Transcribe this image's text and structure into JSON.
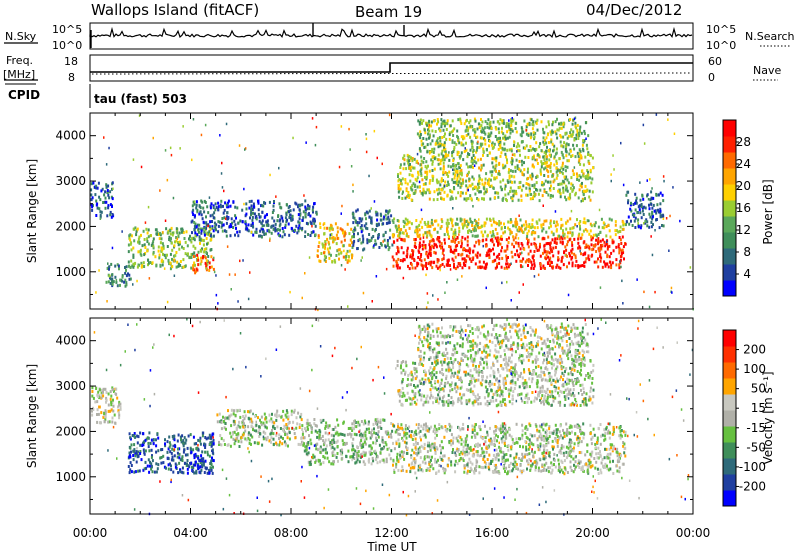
{
  "header": {
    "station": "Wallops Island (fitACF)",
    "beam": "Beam 19",
    "date": "04/Dec/2012"
  },
  "params": {
    "nsky_label": "N.Sky",
    "nsky_ticks": [
      "10^5",
      "10^0"
    ],
    "nsearch_label": "N.Search",
    "nsearch_ticks": [
      "10^5",
      "10^0"
    ],
    "freq_label": "Freq.",
    "freq_unit": "[MHz]",
    "freq_ticks": [
      "18",
      "8"
    ],
    "nave_label": "Nave",
    "nave_ticks": [
      "60",
      "0"
    ],
    "cpid_label": "CPID",
    "cpid_value": "tau (fast) 503"
  },
  "colors": {
    "power": [
      "#0000ff",
      "#1f3fa0",
      "#2e6a7a",
      "#3f8e5a",
      "#5aa85a",
      "#9acd32",
      "#ffd000",
      "#ffa500",
      "#ff6a00",
      "#ff2000",
      "#ff0000"
    ],
    "velocity": [
      "#0000ff",
      "#1f3fa0",
      "#2e6a7a",
      "#3f8e5a",
      "#66c040",
      "#b0b0a8",
      "#c8c8c0",
      "#ffa500",
      "#ff6a00",
      "#ff3000",
      "#ff0000"
    ],
    "ground_scatter": "#b8b8b0"
  },
  "chart_data": [
    {
      "type": "heatmap",
      "name": "power-panel",
      "ylabel": "Slant Range [km]",
      "xlim_hours": [
        0,
        24
      ],
      "ylim_km": [
        180,
        4500
      ],
      "yticks": [
        "1000",
        "2000",
        "3000",
        "4000"
      ],
      "colorbar": {
        "label": "Power [dB]",
        "range": [
          0,
          32
        ],
        "ticks": [
          "4",
          "8",
          "12",
          "16",
          "20",
          "24",
          "28"
        ]
      },
      "regions": [
        {
          "t0": 0.0,
          "t1": 0.9,
          "r0": 2200,
          "r1": 3000,
          "level": 0.18
        },
        {
          "t0": 0.6,
          "t1": 1.6,
          "r0": 700,
          "r1": 1200,
          "level": 0.3
        },
        {
          "t0": 1.5,
          "t1": 4.8,
          "r0": 1100,
          "r1": 2000,
          "level": 0.45
        },
        {
          "t0": 4.0,
          "t1": 4.9,
          "r0": 1000,
          "r1": 1400,
          "level": 0.8
        },
        {
          "t0": 4.0,
          "t1": 9.0,
          "r0": 1800,
          "r1": 2600,
          "level": 0.2
        },
        {
          "t0": 9.0,
          "t1": 10.4,
          "r0": 1200,
          "r1": 2100,
          "level": 0.6
        },
        {
          "t0": 10.4,
          "t1": 12.0,
          "r0": 1500,
          "r1": 2400,
          "level": 0.25
        },
        {
          "t0": 12.0,
          "t1": 21.3,
          "r0": 1100,
          "r1": 1800,
          "level": 0.9
        },
        {
          "t0": 12.0,
          "t1": 21.3,
          "r0": 1800,
          "r1": 2200,
          "level": 0.55
        },
        {
          "t0": 12.2,
          "t1": 20.0,
          "r0": 2600,
          "r1": 3600,
          "level": 0.5
        },
        {
          "t0": 13.0,
          "t1": 19.8,
          "r0": 3600,
          "r1": 4400,
          "level": 0.45
        },
        {
          "t0": 21.3,
          "t1": 22.8,
          "r0": 2000,
          "r1": 2800,
          "level": 0.2
        }
      ]
    },
    {
      "type": "heatmap",
      "name": "velocity-panel",
      "ylabel": "Slant Range [km]",
      "xlabel": "Time UT",
      "xlim_hours": [
        0,
        24
      ],
      "ylim_km": [
        180,
        4500
      ],
      "yticks": [
        "1000",
        "2000",
        "3000",
        "4000"
      ],
      "xticks": [
        "00:00",
        "04:00",
        "08:00",
        "12:00",
        "16:00",
        "20:00",
        "00:00"
      ],
      "colorbar": {
        "label": "Velocity [m s⁻¹]",
        "range": [
          -250,
          250
        ],
        "ticks": [
          "200",
          "100",
          "50",
          "15",
          "-15",
          "-50",
          "-100",
          "-200"
        ]
      },
      "regions": [
        {
          "t0": 0.0,
          "t1": 1.2,
          "r0": 2200,
          "r1": 3000,
          "level": 0.55
        },
        {
          "t0": 1.5,
          "t1": 4.9,
          "r0": 1100,
          "r1": 2000,
          "level": 0.18
        },
        {
          "t0": 3.8,
          "t1": 4.9,
          "r0": 1100,
          "r1": 1500,
          "level": 0.05
        },
        {
          "t0": 5.0,
          "t1": 8.5,
          "r0": 1700,
          "r1": 2500,
          "level": 0.5
        },
        {
          "t0": 8.5,
          "t1": 12.0,
          "r0": 1300,
          "r1": 2300,
          "level": 0.45
        },
        {
          "t0": 12.0,
          "t1": 21.3,
          "r0": 1100,
          "r1": 2200,
          "level": 0.5
        },
        {
          "t0": 12.2,
          "t1": 20.0,
          "r0": 2600,
          "r1": 3600,
          "level": 0.5
        },
        {
          "t0": 13.0,
          "t1": 19.8,
          "r0": 3600,
          "r1": 4400,
          "level": 0.5
        }
      ]
    }
  ]
}
